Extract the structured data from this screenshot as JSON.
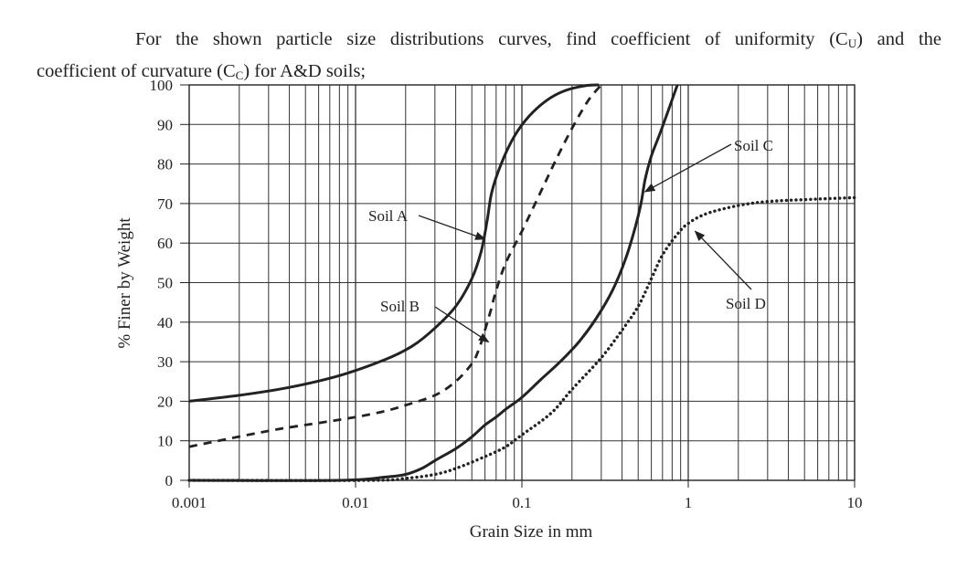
{
  "question": {
    "line1": "For the shown particle size distributions curves, find coefficient of uniformity (C",
    "cu_sub": "U",
    "line1_mid": ") and the",
    "line2": "coefficient of curvature (C",
    "cc_sub": "C",
    "line2_end": ") for A&D soils;"
  },
  "chart_data": {
    "type": "line",
    "title": "",
    "xlabel": "Grain Size in mm",
    "ylabel": "% Finer by Weight",
    "xscale": "log",
    "xlim": [
      0.001,
      10
    ],
    "ylim": [
      0,
      100
    ],
    "xticks": [
      0.001,
      0.01,
      0.1,
      1,
      10
    ],
    "xtick_labels": [
      "0.001",
      "0.01",
      "0.1",
      "1",
      "10"
    ],
    "yticks": [
      0,
      10,
      20,
      30,
      40,
      50,
      60,
      70,
      80,
      90,
      100
    ],
    "ytick_labels": [
      "0",
      "10",
      "20",
      "30",
      "40",
      "50",
      "60",
      "70",
      "80",
      "90",
      "100"
    ],
    "grid": "log-minor vertical lines, horizontal lines every 10",
    "series": [
      {
        "name": "Soil A",
        "style": "solid",
        "x": [
          0.001,
          0.002,
          0.004,
          0.008,
          0.015,
          0.022,
          0.03,
          0.04,
          0.05,
          0.057,
          0.062,
          0.066,
          0.075,
          0.09,
          0.11,
          0.14,
          0.18,
          0.24,
          0.29
        ],
        "y": [
          20,
          21.5,
          23.5,
          26.5,
          30.5,
          34,
          38.5,
          44,
          51,
          58,
          66,
          73,
          80,
          87,
          92,
          96,
          98.5,
          99.8,
          100
        ]
      },
      {
        "name": "Soil B",
        "style": "dashed",
        "x": [
          0.001,
          0.003,
          0.006,
          0.01,
          0.015,
          0.02,
          0.03,
          0.04,
          0.05,
          0.055,
          0.06,
          0.065,
          0.07,
          0.08,
          0.1,
          0.13,
          0.16,
          0.2,
          0.25,
          0.3
        ],
        "y": [
          8.5,
          12.5,
          14.5,
          16,
          17.5,
          19,
          21.5,
          25,
          29.5,
          33,
          38,
          43,
          48,
          55,
          63,
          73,
          81,
          89,
          96,
          100
        ]
      },
      {
        "name": "Soil C",
        "style": "solid",
        "x": [
          0.001,
          0.008,
          0.015,
          0.02,
          0.025,
          0.03,
          0.04,
          0.05,
          0.06,
          0.07,
          0.08,
          0.1,
          0.13,
          0.17,
          0.22,
          0.28,
          0.35,
          0.42,
          0.48,
          0.52,
          0.55,
          0.6,
          0.68,
          0.78,
          0.86
        ],
        "y": [
          0,
          0,
          0.8,
          1.5,
          3,
          5,
          8,
          11,
          14,
          16,
          18,
          21,
          25.5,
          30,
          35,
          41,
          48,
          56,
          64,
          70,
          76,
          82,
          88,
          95,
          100
        ]
      },
      {
        "name": "Soil D",
        "style": "dotted",
        "x": [
          0.001,
          0.012,
          0.02,
          0.03,
          0.04,
          0.06,
          0.08,
          0.1,
          0.15,
          0.2,
          0.3,
          0.4,
          0.5,
          0.6,
          0.7,
          0.85,
          1.0,
          1.3,
          2.0,
          3.0,
          5.0,
          10.0
        ],
        "y": [
          0,
          0,
          0.5,
          1.5,
          3,
          6,
          8.5,
          11.5,
          17,
          23,
          31,
          38,
          44,
          51,
          57,
          62,
          65,
          67.5,
          69.5,
          70.5,
          71,
          71.5
        ]
      }
    ],
    "annotations": [
      {
        "text": "Soil A",
        "points_to": [
          0.06,
          61
        ]
      },
      {
        "text": "Soil B",
        "points_to": [
          0.063,
          35
        ]
      },
      {
        "text": "Soil C",
        "points_to": [
          0.55,
          73
        ]
      },
      {
        "text": "Soil D",
        "points_to": [
          1.1,
          63
        ]
      }
    ]
  }
}
